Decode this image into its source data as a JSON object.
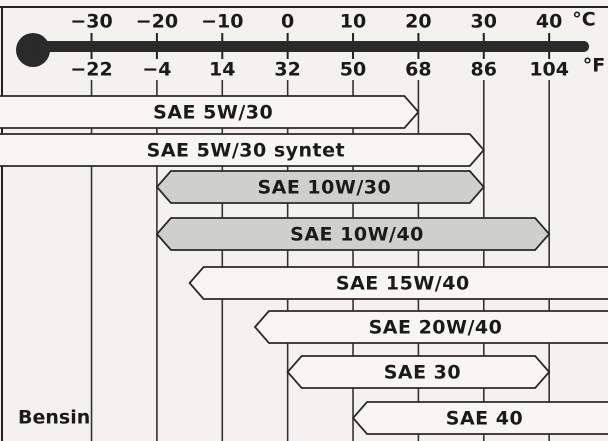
{
  "chart_data": {
    "type": "range",
    "x_unit": "°C",
    "x2_unit": "°F",
    "annotation": "Bensin",
    "xlim": [
      -44,
      49
    ],
    "xticks": [
      {
        "value": -30,
        "label": "−30"
      },
      {
        "value": -20,
        "label": "−20"
      },
      {
        "value": -10,
        "label": "−10"
      },
      0,
      10,
      20,
      30,
      40
    ],
    "x2lim": [
      -47.2,
      120.2
    ],
    "x2ticks": [
      {
        "value": -22,
        "label": "−22"
      },
      {
        "value": -4,
        "label": "−4"
      },
      14,
      32,
      50,
      68,
      86,
      104
    ],
    "categories": [
      "SAE 5W/30",
      "SAE 5W/30 syntet",
      "SAE 10W/30",
      "SAE 10W/40",
      "SAE 15W/40",
      "SAE 20W/40",
      "SAE 30",
      "SAE 40"
    ],
    "low": [
      null,
      null,
      -20,
      -20,
      -15,
      -5,
      0,
      10
    ],
    "high": [
      20,
      30,
      30,
      40,
      null,
      null,
      40,
      null
    ],
    "colors": [
      "#f7f6f2",
      "#f7f6f2",
      "#cfcfcb",
      "#cfcfcb",
      "#f7f6f2",
      "#f7f6f2",
      "#f7f6f2",
      "#f7f6f2"
    ],
    "grid": true
  }
}
